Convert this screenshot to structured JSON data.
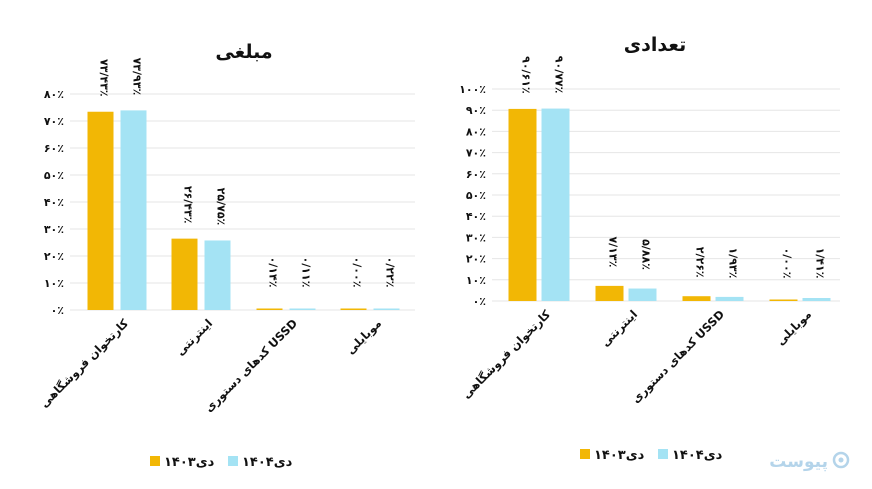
{
  "colors": {
    "s1403": "#f2b705",
    "s1404": "#a4e3f4",
    "grid": "#e6e6e6",
    "text": "#111111",
    "logo": "#b4d4ea"
  },
  "logo": {
    "text": "پیوست",
    "icon": "circle-logo-icon"
  },
  "chart_data": [
    {
      "type": "bar",
      "title": "مبلغی",
      "categories": [
        "کارتخوان فروشگاهی",
        "اینترنتی",
        "کدهای دستوری USSD",
        "موبایلی"
      ],
      "series": [
        {
          "name": "دی۱۴۰۳",
          "values": [
            73.43,
            26.43,
            0.14,
            0.0
          ],
          "labels": [
            "۷۳/۴۳٪",
            "۲۶/۴۳٪",
            "۰/۱۴٪",
            "۰/۰۰٪"
          ]
        },
        {
          "name": "دی۱۴۰۴",
          "values": [
            73.93,
            25.75,
            0.11,
            0.22
          ],
          "labels": [
            "۷۳/۹۳٪",
            "۲۵/۷۵٪",
            "۰/۱۱٪",
            "۰/۲۲٪"
          ]
        }
      ],
      "yticks": [
        "۰٪",
        "۱۰٪",
        "۲۰٪",
        "۳۰٪",
        "۴۰٪",
        "۵۰٪",
        "۶۰٪",
        "۷۰٪",
        "۸۰٪"
      ],
      "ylim": [
        0,
        80
      ],
      "grid": true,
      "legend": "bottom"
    },
    {
      "type": "bar",
      "title": "تعدادی",
      "categories": [
        "کارتخوان فروشگاهی",
        "اینترنتی",
        "کدهای دستوری USSD",
        "موبایلی"
      ],
      "series": [
        {
          "name": "دی۱۴۰۳",
          "values": [
            90.61,
            7.13,
            2.26,
            0.0
          ],
          "labels": [
            "۹۰/۶۱٪",
            "۷/۱۳٪",
            "۲/۲۶٪",
            "۰/۰۰٪"
          ]
        },
        {
          "name": "دی۱۴۰۴",
          "values": [
            90.77,
            5.88,
            1.93,
            1.41
          ],
          "labels": [
            "۹۰/۷۷٪",
            "۵/۸۸٪",
            "۱/۹۳٪",
            "۱/۴۱٪"
          ]
        }
      ],
      "yticks": [
        "۰٪",
        "۱۰٪",
        "۲۰٪",
        "۳۰٪",
        "۴۰٪",
        "۵۰٪",
        "۶۰٪",
        "۷۰٪",
        "۸۰٪",
        "۹۰٪",
        "۱۰۰٪"
      ],
      "ylim": [
        0,
        100
      ],
      "grid": true,
      "legend": "bottom"
    }
  ]
}
